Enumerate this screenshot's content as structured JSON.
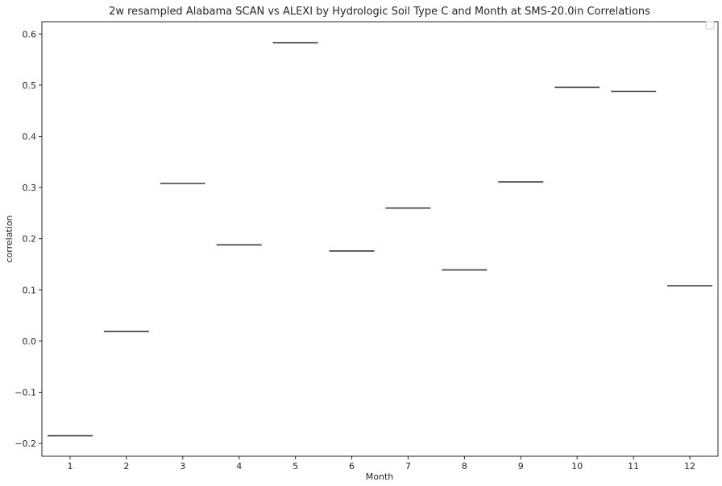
{
  "chart_data": {
    "type": "box",
    "title": "2w resampled Alabama SCAN vs ALEXI by Hydrologic Soil Type C and Month at SMS-20.0in Correlations",
    "xlabel": "Month",
    "ylabel": "correlation",
    "categories": [
      "1",
      "2",
      "3",
      "4",
      "5",
      "6",
      "7",
      "8",
      "9",
      "10",
      "11",
      "12"
    ],
    "values": [
      -0.185,
      0.019,
      0.308,
      0.188,
      0.583,
      0.176,
      0.26,
      0.139,
      0.311,
      0.496,
      0.488,
      0.108
    ],
    "ylim": [
      -0.225,
      0.624
    ],
    "yticks": [
      "−0.2",
      "−0.1",
      "0.0",
      "0.1",
      "0.2",
      "0.3",
      "0.4",
      "0.5",
      "0.6"
    ],
    "ytick_values": [
      -0.2,
      -0.1,
      0.0,
      0.1,
      0.2,
      0.3,
      0.4,
      0.5,
      0.6
    ],
    "grid": false,
    "legend": "top-right (empty)",
    "colors": {
      "line": "#3a3a3a",
      "axes": "#262626",
      "background": "#ffffff"
    }
  }
}
